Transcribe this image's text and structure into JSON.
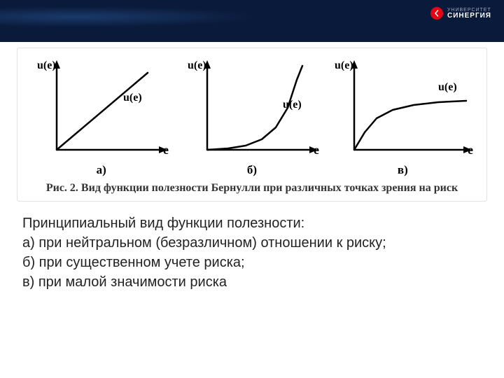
{
  "header": {
    "brand_line1": "УНИВЕРСИТЕТ",
    "brand_line2": "СИНЕРГИЯ",
    "brand_badge_color": "#e30613",
    "background_color": "#0a1a3a"
  },
  "figure": {
    "caption": "Рис. 2. Вид функции полезности Бернулли при различных точках зрения на риск",
    "y_axis_label": "u(e)",
    "x_axis_label": "e",
    "curve_label": "u(e)",
    "axis_color": "#000000",
    "stroke_width": 2.5,
    "label_fontsize": 16,
    "label_fontweight": "bold",
    "charts": [
      {
        "sub": "а)",
        "type": "line",
        "description": "linear (risk-neutral)",
        "points": [
          [
            0,
            0
          ],
          [
            130,
            110
          ]
        ]
      },
      {
        "sub": "б)",
        "type": "curve",
        "description": "convex / exponential (risk-seeking)",
        "points": [
          [
            0,
            0
          ],
          [
            30,
            2
          ],
          [
            55,
            6
          ],
          [
            78,
            15
          ],
          [
            98,
            32
          ],
          [
            115,
            60
          ],
          [
            128,
            100
          ],
          [
            136,
            120
          ]
        ]
      },
      {
        "sub": "в)",
        "type": "curve",
        "description": "concave / log-like (risk-averse)",
        "points": [
          [
            0,
            0
          ],
          [
            15,
            25
          ],
          [
            32,
            45
          ],
          [
            55,
            57
          ],
          [
            85,
            64
          ],
          [
            120,
            68
          ],
          [
            160,
            70
          ]
        ]
      }
    ]
  },
  "body": {
    "intro": "Принципиальный вид функции полезности:",
    "items": [
      "а) при нейтральном (безразличном) отношении к риску;",
      "б) при существенном учете риска;",
      "в) при малой значимости риска"
    ]
  }
}
